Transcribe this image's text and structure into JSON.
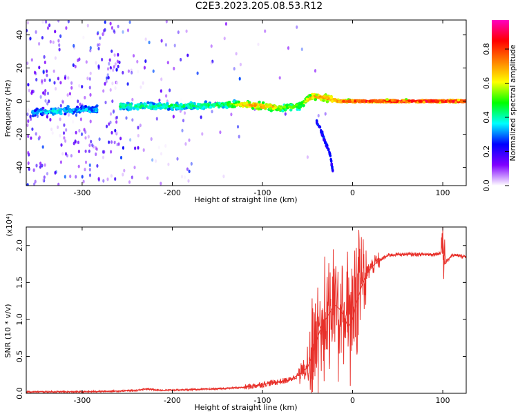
{
  "title": "C2E3.2023.205.08.53.R12",
  "chart_data": [
    {
      "type": "heatmap",
      "xlabel": "Height of straight line (km)",
      "ylabel": "Frequency (Hz)",
      "xlim": [
        -362,
        126
      ],
      "ylim": [
        -51,
        49
      ],
      "x_ticks": [
        -300,
        -200,
        -100,
        0,
        100
      ],
      "x_tick_labels": [
        "-300",
        "-200",
        "-100",
        "0",
        "100"
      ],
      "y_ticks": [
        -40,
        -20,
        0,
        20,
        40
      ],
      "y_tick_labels": [
        "-40",
        "-20",
        "0",
        "20",
        "40"
      ],
      "colorbar": {
        "label": "Normalized spectral amplitude",
        "range": [
          0,
          0.97
        ],
        "ticks": [
          0.0,
          0.2,
          0.4,
          0.6,
          0.8
        ],
        "tick_labels": [
          "0.0",
          "0.2",
          "0.4",
          "0.6",
          "0.8"
        ],
        "colormap": [
          "#ffffff",
          "#8000ff",
          "#0000ff",
          "#00ffff",
          "#00ff00",
          "#ffff00",
          "#ff8000",
          "#ff0000",
          "#ff00c0"
        ]
      },
      "ridge": {
        "x": [
          -355,
          -330,
          -300,
          -285,
          -260,
          -230,
          -200,
          -170,
          -140,
          -120,
          -100,
          -80,
          -60,
          -45,
          -30,
          -15,
          0,
          50,
          126
        ],
        "y": [
          -7,
          -6,
          -5,
          -5,
          -3,
          -3,
          -3,
          -3,
          -2,
          -2,
          -3,
          -4,
          -3,
          3,
          2,
          0,
          0,
          0,
          0
        ],
        "amplitude": [
          0.35,
          0.4,
          0.35,
          0.35,
          0.45,
          0.45,
          0.45,
          0.45,
          0.5,
          0.7,
          0.75,
          0.6,
          0.55,
          0.7,
          0.75,
          0.8,
          0.85,
          0.9,
          0.9
        ]
      },
      "branch": {
        "x": [
          -40,
          -35,
          -30,
          -25,
          -22
        ],
        "y": [
          -12,
          -18,
          -25,
          -32,
          -42
        ]
      }
    },
    {
      "type": "line",
      "xlabel": "Height of straight line (km)",
      "ylabel": "SNR (10 * v/v)",
      "y_multiplier": "(x10⁴)",
      "xlim": [
        -362,
        126
      ],
      "ylim": [
        0,
        2.25
      ],
      "x_ticks": [
        -300,
        -200,
        -100,
        0,
        100
      ],
      "x_tick_labels": [
        "-300",
        "-200",
        "-100",
        "0",
        "100"
      ],
      "y_ticks": [
        0.0,
        0.5,
        1.0,
        1.5,
        2.0
      ],
      "y_tick_labels": [
        "0.0",
        "0.5",
        "1.0",
        "1.5",
        "2.0"
      ],
      "color": "#e8302a",
      "series": [
        {
          "x": [
            -362,
            -330,
            -300,
            -260,
            -240,
            -230,
            -210,
            -180,
            -150,
            -120,
            -100,
            -85,
            -70,
            -60,
            -50,
            -45,
            -40,
            -35,
            -30,
            -25,
            -20,
            -15,
            -10,
            -5,
            0,
            5,
            10,
            15,
            20,
            30,
            40,
            50,
            70,
            90,
            98,
            100,
            102,
            110,
            126
          ],
          "y": [
            0.02,
            0.02,
            0.02,
            0.03,
            0.04,
            0.06,
            0.04,
            0.05,
            0.06,
            0.08,
            0.12,
            0.15,
            0.18,
            0.25,
            0.35,
            0.5,
            0.7,
            0.9,
            1.0,
            1.1,
            1.2,
            1.15,
            1.05,
            0.9,
            1.0,
            1.25,
            1.45,
            1.6,
            1.7,
            1.8,
            1.87,
            1.88,
            1.88,
            1.88,
            1.9,
            2.1,
            1.75,
            1.87,
            1.85
          ]
        }
      ]
    }
  ]
}
